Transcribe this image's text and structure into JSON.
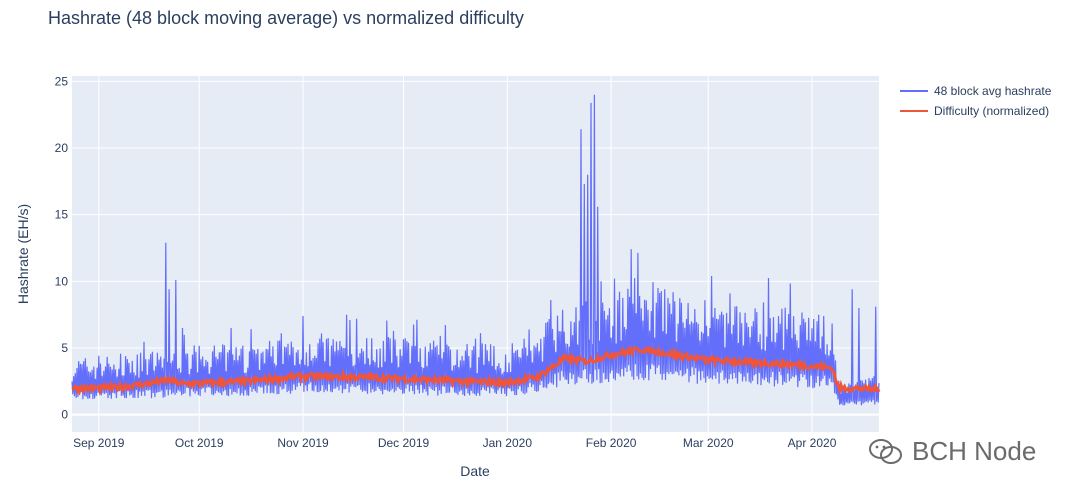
{
  "chart_data": {
    "type": "line",
    "title": "Hashrate (48 block moving average) vs normalized difficulty",
    "xlabel": "Date",
    "ylabel": "Hashrate (EH/s)",
    "ylim": [
      -1.3,
      25.4
    ],
    "yticks": [
      0,
      5,
      10,
      15,
      20,
      25
    ],
    "xlim": [
      "2019-08-24",
      "2020-04-21"
    ],
    "xticks": [
      {
        "date": "2019-09-01",
        "label": "Sep 2019"
      },
      {
        "date": "2019-10-01",
        "label": "Oct 2019"
      },
      {
        "date": "2019-11-01",
        "label": "Nov 2019"
      },
      {
        "date": "2019-12-01",
        "label": "Dec 2019"
      },
      {
        "date": "2020-01-01",
        "label": "Jan 2020"
      },
      {
        "date": "2020-02-01",
        "label": "Feb 2020"
      },
      {
        "date": "2020-03-01",
        "label": "Mar 2020"
      },
      {
        "date": "2020-04-01",
        "label": "Apr 2020"
      }
    ],
    "grid": true,
    "legend_position": "top-right",
    "series": [
      {
        "name": "48 block avg hashrate",
        "color": "#636efa",
        "baseline": [
          [
            "2019-08-24",
            2.0
          ],
          [
            "2019-09-15",
            2.2
          ],
          [
            "2019-09-25",
            2.4
          ],
          [
            "2019-10-15",
            2.5
          ],
          [
            "2019-11-01",
            2.9
          ],
          [
            "2019-11-20",
            2.8
          ],
          [
            "2019-12-10",
            2.6
          ],
          [
            "2019-12-31",
            2.4
          ],
          [
            "2020-01-10",
            2.9
          ],
          [
            "2020-01-18",
            4.0
          ],
          [
            "2020-02-01",
            4.2
          ],
          [
            "2020-02-10",
            4.6
          ],
          [
            "2020-02-20",
            4.3
          ],
          [
            "2020-03-10",
            3.9
          ],
          [
            "2020-03-25",
            3.8
          ],
          [
            "2020-04-07",
            3.4
          ],
          [
            "2020-04-09",
            1.1
          ],
          [
            "2020-04-21",
            1.4
          ]
        ],
        "peaks": [
          [
            "2019-09-21",
            12.9
          ],
          [
            "2019-09-22",
            9.4
          ],
          [
            "2019-09-24",
            10.1
          ],
          [
            "2019-09-26",
            6.5
          ],
          [
            "2019-11-14",
            7.5
          ],
          [
            "2019-11-15",
            7.1
          ],
          [
            "2020-01-14",
            8.6
          ],
          [
            "2020-01-20",
            7.0
          ],
          [
            "2020-01-23",
            21.4
          ],
          [
            "2020-01-24",
            17.3
          ],
          [
            "2020-01-25",
            18.0
          ],
          [
            "2020-01-26",
            23.4
          ],
          [
            "2020-01-27",
            24.0
          ],
          [
            "2020-01-28",
            15.6
          ],
          [
            "2020-01-29",
            10.0
          ],
          [
            "2020-02-07",
            12.4
          ],
          [
            "2020-02-15",
            9.5
          ],
          [
            "2020-02-20",
            8.5
          ],
          [
            "2020-04-13",
            9.4
          ],
          [
            "2020-04-15",
            8.0
          ],
          [
            "2020-04-20",
            8.1
          ]
        ]
      },
      {
        "name": "Difficulty (normalized)",
        "color": "#ef553b",
        "points": [
          [
            "2019-08-24",
            2.0
          ],
          [
            "2019-09-05",
            2.0
          ],
          [
            "2019-09-15",
            2.3
          ],
          [
            "2019-09-22",
            2.6
          ],
          [
            "2019-09-26",
            2.3
          ],
          [
            "2019-10-15",
            2.5
          ],
          [
            "2019-11-01",
            2.9
          ],
          [
            "2019-11-20",
            2.8
          ],
          [
            "2019-12-10",
            2.6
          ],
          [
            "2019-12-31",
            2.4
          ],
          [
            "2020-01-10",
            2.8
          ],
          [
            "2020-01-18",
            4.2
          ],
          [
            "2020-01-25",
            4.0
          ],
          [
            "2020-02-01",
            4.5
          ],
          [
            "2020-02-10",
            4.9
          ],
          [
            "2020-02-20",
            4.5
          ],
          [
            "2020-03-01",
            4.1
          ],
          [
            "2020-03-15",
            3.9
          ],
          [
            "2020-03-25",
            3.8
          ],
          [
            "2020-04-07",
            3.5
          ],
          [
            "2020-04-09",
            2.0
          ],
          [
            "2020-04-21",
            1.9
          ]
        ]
      }
    ]
  },
  "watermark": {
    "text": "BCH Node",
    "icon": "wechat-icon"
  }
}
